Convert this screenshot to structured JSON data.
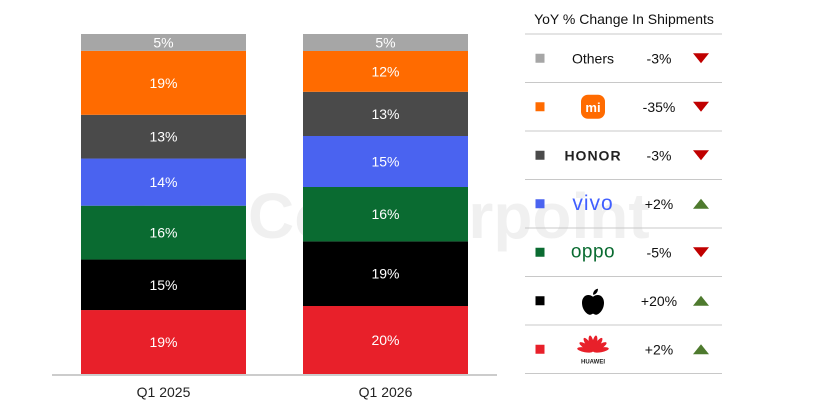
{
  "chart_data": {
    "type": "bar",
    "stacked": true,
    "categories": [
      "Q1 2025",
      "Q1 2026"
    ],
    "series": [
      {
        "name": "Huawei",
        "values": [
          19,
          20
        ],
        "color": "#E8202A"
      },
      {
        "name": "Apple",
        "values": [
          15,
          19
        ],
        "color": "#000000"
      },
      {
        "name": "OPPO",
        "values": [
          16,
          16
        ],
        "color": "#0A6B31"
      },
      {
        "name": "vivo",
        "values": [
          14,
          15
        ],
        "color": "#4A63F0"
      },
      {
        "name": "HONOR",
        "values": [
          13,
          13
        ],
        "color": "#4A4A4A"
      },
      {
        "name": "Xiaomi",
        "values": [
          19,
          12
        ],
        "color": "#FF6B00"
      },
      {
        "name": "Others",
        "values": [
          5,
          5
        ],
        "color": "#A6A6A6"
      }
    ],
    "value_suffix": "%",
    "ylim": [
      0,
      100
    ],
    "grid": false,
    "watermark": "Counterpoint",
    "legend_table": {
      "title": "YoY % Change In Shipments",
      "rows": [
        {
          "brand": "Others",
          "brand_label": "Others",
          "logo": "text",
          "change": "-3%",
          "direction": "down",
          "color": "#A6A6A6"
        },
        {
          "brand": "Xiaomi",
          "brand_label": "mi",
          "logo": "xiaomi-logo",
          "change": "-35%",
          "direction": "down",
          "color": "#FF6B00"
        },
        {
          "brand": "HONOR",
          "brand_label": "HONOR",
          "logo": "honor-wordmark",
          "change": "-3%",
          "direction": "down",
          "color": "#4A4A4A"
        },
        {
          "brand": "vivo",
          "brand_label": "vivo",
          "logo": "vivo-wordmark",
          "change": "+2%",
          "direction": "up",
          "color": "#4A63F0"
        },
        {
          "brand": "OPPO",
          "brand_label": "oppo",
          "logo": "oppo-wordmark",
          "change": "-5%",
          "direction": "down",
          "color": "#0A6B31"
        },
        {
          "brand": "Apple",
          "brand_label": "",
          "logo": "apple-logo",
          "change": "+20%",
          "direction": "up",
          "color": "#000000"
        },
        {
          "brand": "Huawei",
          "brand_label": "HUAWEI",
          "logo": "huawei-logo",
          "change": "+2%",
          "direction": "up",
          "color": "#E8202A"
        }
      ],
      "down_color": "#C00000",
      "up_color": "#4E7A2E"
    }
  }
}
